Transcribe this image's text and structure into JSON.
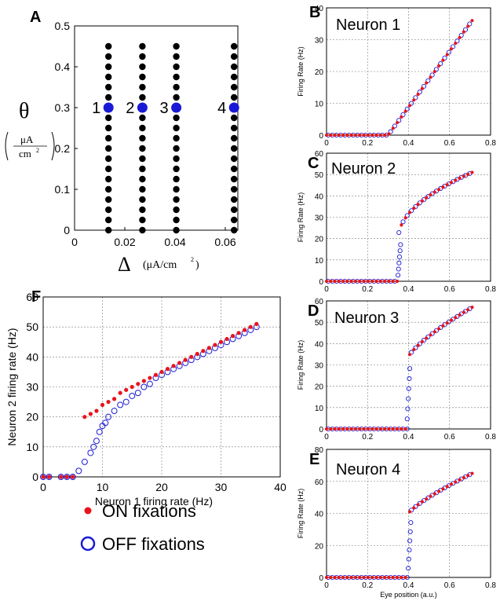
{
  "colors": {
    "on": "#e8141c",
    "off": "#1a1ad6",
    "grid_point": "#000000",
    "highlight_point": "#1a1ad6"
  },
  "panel_a": {
    "letter": "A",
    "ylabel_symbol": "θ",
    "ylabel_unit_num": "μA",
    "ylabel_unit_den": "cm",
    "ylabel_unit_exp": "2",
    "xlabel_symbol": "Δ",
    "xlabel_unit": "(μA/cm",
    "xlabel_unit_exp": "2",
    "xlabel_unit_close": ")",
    "neuron_labels": [
      "1",
      "2",
      "3",
      "4"
    ]
  },
  "panel_f": {
    "letter": "F",
    "legend_on": "ON fixations",
    "legend_off": "OFF fixations"
  },
  "chart_data": [
    {
      "id": "A",
      "type": "scatter",
      "xlabel": "Δ (μA/cm2)",
      "ylabel": "θ (μA/cm2)",
      "xlim": [
        0,
        0.065
      ],
      "ylim": [
        0,
        0.5
      ],
      "xticks": [
        0,
        0.02,
        0.04,
        0.06
      ],
      "xtick_labels": [
        "0",
        "0.02",
        "0.04",
        "0.06"
      ],
      "yticks": [
        0,
        0.1,
        0.2,
        0.3,
        0.4,
        0.5
      ],
      "ytick_labels": [
        "0",
        "0.1",
        "0.2",
        "0.3",
        "0.4",
        "0.5"
      ],
      "grid": false,
      "delta_values": [
        0.0135,
        0.027,
        0.0405,
        0.0635
      ],
      "theta_values": [
        0,
        0.025,
        0.05,
        0.075,
        0.1,
        0.125,
        0.15,
        0.175,
        0.2,
        0.225,
        0.25,
        0.275,
        0.3,
        0.325,
        0.35,
        0.375,
        0.4,
        0.425,
        0.45
      ],
      "highlighted": [
        {
          "label": "1",
          "delta": 0.0135,
          "theta": 0.3
        },
        {
          "label": "2",
          "delta": 0.027,
          "theta": 0.3
        },
        {
          "label": "3",
          "delta": 0.0405,
          "theta": 0.3
        },
        {
          "label": "4",
          "delta": 0.0635,
          "theta": 0.3
        }
      ]
    },
    {
      "id": "B",
      "type": "scatter",
      "letter": "B",
      "title": "Neuron 1",
      "ylabel": "Firing Rate (Hz)",
      "xlabel": "",
      "xlim": [
        0,
        0.8
      ],
      "ylim": [
        0,
        40
      ],
      "xticks": [
        0,
        0.2,
        0.4,
        0.6,
        0.8
      ],
      "xtick_labels": [
        "0",
        "0.2",
        "0.4",
        "0.6",
        "0.8"
      ],
      "yticks": [
        0,
        10,
        20,
        30,
        40
      ],
      "ytick_labels": [
        "0",
        "10",
        "20",
        "30",
        "40"
      ],
      "grid": true,
      "threshold": 0.3,
      "max_x": 0.71,
      "max_rate": 36,
      "exponent": 1,
      "jump": 0
    },
    {
      "id": "C",
      "type": "scatter",
      "letter": "C",
      "title": "Neuron 2",
      "ylabel": "Firing Rate (Hz)",
      "xlabel": "",
      "xlim": [
        0,
        0.8
      ],
      "ylim": [
        0,
        60
      ],
      "xticks": [
        0,
        0.2,
        0.4,
        0.6,
        0.8
      ],
      "xtick_labels": [
        "0",
        "0.2",
        "0.4",
        "0.6",
        "0.8"
      ],
      "yticks": [
        0,
        10,
        20,
        30,
        40,
        50,
        60
      ],
      "ytick_labels": [
        "0",
        "10",
        "20",
        "30",
        "40",
        "50",
        "60"
      ],
      "grid": true,
      "threshold": 0.35,
      "max_x": 0.71,
      "max_rate": 51,
      "exponent": 0.5,
      "jump": 20
    },
    {
      "id": "D",
      "type": "scatter",
      "letter": "D",
      "title": "Neuron 3",
      "ylabel": "Firing Rate (Hz)",
      "xlabel": "",
      "xlim": [
        0,
        0.8
      ],
      "ylim": [
        0,
        60
      ],
      "xticks": [
        0,
        0.2,
        0.4,
        0.6,
        0.8
      ],
      "xtick_labels": [
        "0",
        "0.2",
        "0.4",
        "0.6",
        "0.8"
      ],
      "yticks": [
        0,
        10,
        20,
        30,
        40,
        50,
        60
      ],
      "ytick_labels": [
        "0",
        "10",
        "20",
        "30",
        "40",
        "50",
        "60"
      ],
      "grid": true,
      "threshold": 0.395,
      "max_x": 0.71,
      "max_rate": 57,
      "exponent": 0.75,
      "jump": 33
    },
    {
      "id": "E",
      "type": "scatter",
      "letter": "E",
      "title": "Neuron 4",
      "ylabel": "Firing Rate (Hz)",
      "xlabel": "Eye position (a.u.)",
      "xlim": [
        0,
        0.8
      ],
      "ylim": [
        0,
        80
      ],
      "xticks": [
        0,
        0.2,
        0.4,
        0.6,
        0.8
      ],
      "xtick_labels": [
        "0",
        "0.2",
        "0.4",
        "0.6",
        "0.8"
      ],
      "yticks": [
        0,
        20,
        40,
        60,
        80
      ],
      "ytick_labels": [
        "0",
        "20",
        "40",
        "60",
        "80"
      ],
      "grid": true,
      "threshold": 0.4,
      "max_x": 0.71,
      "max_rate": 65,
      "exponent": 0.8,
      "jump": 40
    },
    {
      "id": "F",
      "type": "scatter",
      "xlabel": "Neuron 1 firing rate (Hz)",
      "ylabel": "Neuron 2 firing rate (Hz)",
      "xlim": [
        0,
        40
      ],
      "ylim": [
        0,
        60
      ],
      "xticks": [
        0,
        10,
        20,
        30,
        40
      ],
      "xtick_labels": [
        "0",
        "10",
        "20",
        "30",
        "40"
      ],
      "yticks": [
        0,
        10,
        20,
        30,
        40,
        50,
        60
      ],
      "ytick_labels": [
        "0",
        "10",
        "20",
        "30",
        "40",
        "50",
        "60"
      ],
      "grid": true,
      "series": [
        {
          "name": "ON fixations",
          "x": [
            0,
            1,
            3,
            4,
            5,
            7,
            8,
            9,
            10,
            11,
            12,
            13,
            14,
            15,
            16,
            17,
            18,
            19,
            20,
            21,
            22,
            23,
            24,
            25,
            26,
            27,
            28,
            29,
            30,
            31,
            32,
            33,
            34,
            35,
            36
          ],
          "y": [
            0,
            0,
            0,
            0,
            0,
            20,
            21,
            22,
            24,
            25,
            26,
            28,
            29,
            30,
            31,
            32,
            33,
            34,
            35,
            36,
            37,
            38,
            39,
            40,
            41,
            42,
            43,
            44,
            45,
            46,
            47,
            48,
            49,
            50,
            51
          ]
        },
        {
          "name": "OFF fixations",
          "x": [
            0,
            1,
            3,
            4,
            5,
            6,
            7,
            8,
            8.5,
            9,
            9.5,
            10,
            10.5,
            11,
            12,
            13,
            14,
            15,
            16,
            17,
            18,
            19,
            20,
            21,
            22,
            23,
            24,
            25,
            26,
            27,
            28,
            29,
            30,
            31,
            32,
            33,
            34,
            35,
            36
          ],
          "y": [
            0,
            0,
            0,
            0,
            0,
            2,
            5,
            8,
            10,
            12,
            15,
            17,
            18,
            20,
            22,
            24,
            25,
            27,
            28,
            30,
            31,
            33,
            34,
            35,
            36,
            37,
            38,
            39,
            40,
            41,
            42,
            43,
            44,
            45,
            46,
            47,
            48,
            49,
            50
          ]
        }
      ]
    }
  ]
}
